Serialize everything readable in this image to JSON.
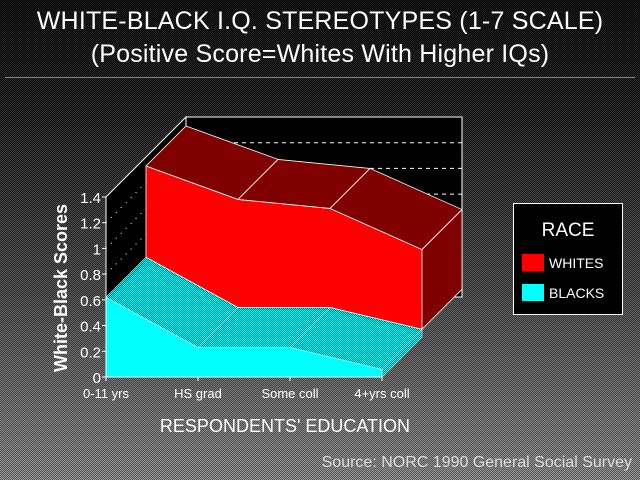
{
  "title": "WHITE-BLACK I.Q. STEREOTYPES (1-7 SCALE)",
  "subtitle": "(Positive Score=Whites With Higher IQs)",
  "source": "Source: NORC 1990 General Social Survey",
  "chart_data": {
    "type": "area",
    "stacked": true,
    "three_d": true,
    "title": "WHITE-BLACK I.Q. STEREOTYPES (1-7 SCALE)",
    "xlabel": "RESPONDENTS' EDUCATION",
    "ylabel": "White-Black Scores",
    "categories": [
      "0-11 yrs",
      "HS grad",
      "Some coll",
      "4+yrs coll"
    ],
    "yticks": [
      "0",
      "0.2",
      "0.4",
      "0.6",
      "0.8",
      "1",
      "1.2",
      "1.4"
    ],
    "ylim": [
      0,
      1.4
    ],
    "series": [
      {
        "name": "BLACKS",
        "values": [
          0.62,
          0.23,
          0.23,
          0.06
        ],
        "color": "#00ffff"
      },
      {
        "name": "WHITES",
        "values": [
          0.71,
          0.84,
          0.77,
          0.62
        ],
        "color": "#ff0000"
      }
    ],
    "legend": {
      "title": "RACE",
      "placement": "right"
    }
  }
}
